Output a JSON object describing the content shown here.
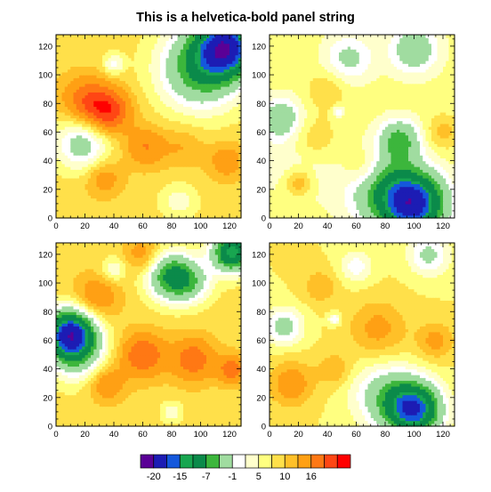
{
  "title": "This is a helvetica-bold panel string",
  "chart_data": {
    "type": "heatmap",
    "title": "This is a helvetica-bold panel string",
    "layout": "2x2 panels",
    "x_range": [
      0,
      128
    ],
    "y_range": [
      0,
      128
    ],
    "x_ticks": [
      "0",
      "20",
      "40",
      "60",
      "80",
      "100",
      "120"
    ],
    "y_ticks": [
      "0",
      "20",
      "40",
      "60",
      "80",
      "100",
      "120"
    ],
    "colorbar": {
      "labels": [
        "-20",
        "-15",
        "-7",
        "-1",
        "5",
        "10",
        "16"
      ],
      "label_boundaries": [
        1,
        3,
        5,
        7,
        9,
        11,
        13
      ],
      "levels": [
        -25,
        -20,
        -17,
        -15,
        -10,
        -7,
        -3,
        -1,
        1,
        3,
        5,
        7,
        10,
        13,
        16
      ],
      "colors": [
        "#5a0096",
        "#1c1cb4",
        "#1458dc",
        "#18a650",
        "#0b8a4a",
        "#3cb63c",
        "#a0dca0",
        "#ffffff",
        "#ffffcc",
        "#ffff80",
        "#ffe04a",
        "#ffc028",
        "#ffa014",
        "#ff7814",
        "#ff4614",
        "#ff0000"
      ]
    },
    "panels": [
      {
        "name": "top-left",
        "base": 4,
        "features": [
          [
            118,
            120,
            14,
            -23
          ],
          [
            100,
            105,
            20,
            -14
          ],
          [
            36,
            75,
            11,
            11
          ],
          [
            20,
            83,
            12,
            7
          ],
          [
            18,
            52,
            13,
            -9
          ],
          [
            85,
            12,
            9,
            -4
          ],
          [
            62,
            50,
            10,
            6
          ],
          [
            33,
            28,
            9,
            5
          ],
          [
            118,
            40,
            9,
            5
          ],
          [
            88,
            50,
            10,
            3
          ],
          [
            40,
            108,
            5,
            -6
          ]
        ]
      },
      {
        "name": "top-right",
        "base": 2,
        "features": [
          [
            100,
            10,
            15,
            -22
          ],
          [
            80,
            20,
            18,
            -10
          ],
          [
            90,
            55,
            10,
            -10
          ],
          [
            8,
            70,
            10,
            -8
          ],
          [
            20,
            40,
            20,
            -3
          ],
          [
            100,
            118,
            12,
            -8
          ],
          [
            55,
            112,
            12,
            -6
          ],
          [
            20,
            25,
            7,
            6
          ],
          [
            30,
            55,
            12,
            4
          ],
          [
            65,
            35,
            10,
            4
          ],
          [
            120,
            60,
            8,
            4
          ],
          [
            40,
            90,
            10,
            3
          ],
          [
            48,
            75,
            3,
            -5
          ]
        ]
      },
      {
        "name": "bottom-left",
        "base": 4,
        "features": [
          [
            10,
            65,
            12,
            -25
          ],
          [
            15,
            50,
            14,
            -8
          ],
          [
            122,
            122,
            10,
            -20
          ],
          [
            80,
            105,
            12,
            -15
          ],
          [
            95,
            100,
            10,
            -6
          ],
          [
            40,
            110,
            6,
            -5
          ],
          [
            80,
            10,
            5,
            -5
          ],
          [
            60,
            50,
            11,
            9
          ],
          [
            95,
            47,
            11,
            8
          ],
          [
            122,
            40,
            7,
            8
          ],
          [
            35,
            30,
            9,
            6
          ],
          [
            28,
            90,
            11,
            6
          ],
          [
            60,
            120,
            9,
            5
          ]
        ]
      },
      {
        "name": "bottom-right",
        "base": 3,
        "features": [
          [
            100,
            12,
            13,
            -22
          ],
          [
            80,
            22,
            16,
            -8
          ],
          [
            10,
            70,
            9,
            -8
          ],
          [
            110,
            120,
            10,
            -7
          ],
          [
            60,
            112,
            8,
            -5
          ],
          [
            45,
            75,
            3,
            -6
          ],
          [
            15,
            30,
            11,
            6
          ],
          [
            75,
            68,
            14,
            5
          ],
          [
            115,
            60,
            9,
            5
          ],
          [
            45,
            40,
            8,
            4
          ],
          [
            35,
            98,
            8,
            4
          ]
        ]
      }
    ]
  }
}
